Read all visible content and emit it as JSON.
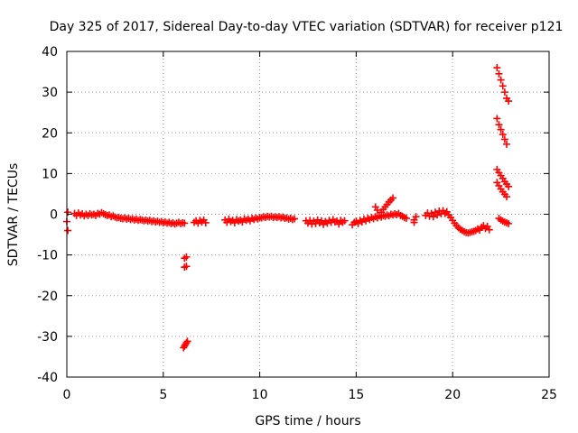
{
  "chart_data": {
    "type": "scatter",
    "title": "Day 325 of 2017, Sidereal Day-to-day VTEC variation (SDTVAR) for receiver p121",
    "xlabel": "GPS time / hours",
    "ylabel": "SDTVAR / TECUs",
    "xlim": [
      0,
      25
    ],
    "ylim": [
      -40,
      40
    ],
    "xticks": [
      0,
      5,
      10,
      15,
      20,
      25
    ],
    "yticks": [
      -40,
      -30,
      -20,
      -10,
      0,
      10,
      20,
      30,
      40
    ],
    "xtick_labels": [
      "0",
      "5",
      "10",
      "15",
      "20",
      "25"
    ],
    "ytick_labels": [
      "-40",
      "-30",
      "-20",
      "-10",
      "0",
      "10",
      "20",
      "30",
      "40"
    ],
    "grid": true,
    "marker": "plus",
    "series": [
      {
        "name": "SDTVAR",
        "color": "#ff0000",
        "points": [
          [
            0.0,
            -1.8
          ],
          [
            0.05,
            0.5
          ],
          [
            0.05,
            -4.0
          ],
          [
            0.4,
            0.2
          ],
          [
            0.5,
            -0.3
          ],
          [
            0.6,
            0.3
          ],
          [
            0.7,
            -0.2
          ],
          [
            0.8,
            0.1
          ],
          [
            0.9,
            -0.4
          ],
          [
            1.0,
            0.0
          ],
          [
            1.1,
            -0.3
          ],
          [
            1.2,
            0.1
          ],
          [
            1.3,
            -0.2
          ],
          [
            1.4,
            0.0
          ],
          [
            1.5,
            -0.3
          ],
          [
            1.6,
            0.2
          ],
          [
            1.7,
            0.0
          ],
          [
            1.8,
            0.4
          ],
          [
            1.9,
            0.1
          ],
          [
            2.0,
            -0.1
          ],
          [
            2.1,
            -0.3
          ],
          [
            2.2,
            -0.2
          ],
          [
            2.3,
            -0.6
          ],
          [
            2.4,
            -0.4
          ],
          [
            2.5,
            -0.7
          ],
          [
            2.6,
            -0.9
          ],
          [
            2.7,
            -0.8
          ],
          [
            2.8,
            -1.0
          ],
          [
            2.9,
            -1.1
          ],
          [
            3.0,
            -0.9
          ],
          [
            3.1,
            -1.2
          ],
          [
            3.2,
            -1.0
          ],
          [
            3.3,
            -1.3
          ],
          [
            3.4,
            -1.1
          ],
          [
            3.5,
            -1.4
          ],
          [
            3.6,
            -1.2
          ],
          [
            3.7,
            -1.5
          ],
          [
            3.8,
            -1.3
          ],
          [
            3.9,
            -1.4
          ],
          [
            4.0,
            -1.6
          ],
          [
            4.1,
            -1.4
          ],
          [
            4.2,
            -1.7
          ],
          [
            4.3,
            -1.5
          ],
          [
            4.4,
            -1.8
          ],
          [
            4.5,
            -1.6
          ],
          [
            4.6,
            -1.9
          ],
          [
            4.7,
            -1.7
          ],
          [
            4.8,
            -2.0
          ],
          [
            4.9,
            -1.8
          ],
          [
            5.0,
            -2.1
          ],
          [
            5.1,
            -1.9
          ],
          [
            5.2,
            -2.2
          ],
          [
            5.3,
            -2.0
          ],
          [
            5.4,
            -2.3
          ],
          [
            5.5,
            -2.1
          ],
          [
            5.6,
            -2.4
          ],
          [
            5.7,
            -2.2
          ],
          [
            5.8,
            -2.0
          ],
          [
            5.9,
            -2.3
          ],
          [
            6.0,
            -2.1
          ],
          [
            6.1,
            -2.2
          ],
          [
            6.1,
            -10.8
          ],
          [
            6.2,
            -10.5
          ],
          [
            6.1,
            -13.0
          ],
          [
            6.2,
            -12.8
          ],
          [
            6.05,
            -32.8
          ],
          [
            6.1,
            -32.4
          ],
          [
            6.15,
            -32.0
          ],
          [
            6.2,
            -31.6
          ],
          [
            6.25,
            -31.2
          ],
          [
            6.6,
            -2.0
          ],
          [
            6.7,
            -1.6
          ],
          [
            6.8,
            -2.2
          ],
          [
            6.9,
            -1.5
          ],
          [
            7.0,
            -1.9
          ],
          [
            7.1,
            -1.4
          ],
          [
            7.2,
            -2.1
          ],
          [
            8.2,
            -1.4
          ],
          [
            8.3,
            -2.0
          ],
          [
            8.4,
            -1.2
          ],
          [
            8.5,
            -1.8
          ],
          [
            8.6,
            -1.5
          ],
          [
            8.7,
            -2.1
          ],
          [
            8.8,
            -1.3
          ],
          [
            8.9,
            -1.7
          ],
          [
            9.0,
            -1.4
          ],
          [
            9.1,
            -1.9
          ],
          [
            9.2,
            -1.1
          ],
          [
            9.3,
            -1.5
          ],
          [
            9.4,
            -1.2
          ],
          [
            9.5,
            -1.6
          ],
          [
            9.6,
            -1.0
          ],
          [
            9.7,
            -1.3
          ],
          [
            9.8,
            -0.9
          ],
          [
            9.9,
            -1.2
          ],
          [
            10.0,
            -0.8
          ],
          [
            10.1,
            -0.9
          ],
          [
            10.2,
            -0.6
          ],
          [
            10.3,
            -0.8
          ],
          [
            10.4,
            -0.5
          ],
          [
            10.5,
            -0.7
          ],
          [
            10.6,
            -0.5
          ],
          [
            10.7,
            -0.8
          ],
          [
            10.8,
            -0.6
          ],
          [
            10.9,
            -0.8
          ],
          [
            11.0,
            -0.6
          ],
          [
            11.1,
            -0.9
          ],
          [
            11.2,
            -0.7
          ],
          [
            11.3,
            -1.0
          ],
          [
            11.4,
            -0.9
          ],
          [
            11.5,
            -1.2
          ],
          [
            11.6,
            -1.0
          ],
          [
            11.7,
            -1.3
          ],
          [
            11.8,
            -1.1
          ],
          [
            12.4,
            -1.6
          ],
          [
            12.5,
            -2.2
          ],
          [
            12.6,
            -1.5
          ],
          [
            12.7,
            -2.4
          ],
          [
            12.8,
            -1.7
          ],
          [
            12.9,
            -2.3
          ],
          [
            13.0,
            -1.4
          ],
          [
            13.1,
            -2.1
          ],
          [
            13.2,
            -1.6
          ],
          [
            13.3,
            -2.5
          ],
          [
            13.4,
            -1.8
          ],
          [
            13.5,
            -2.2
          ],
          [
            13.6,
            -1.5
          ],
          [
            13.7,
            -2.0
          ],
          [
            13.8,
            -1.3
          ],
          [
            13.9,
            -1.9
          ],
          [
            14.0,
            -1.7
          ],
          [
            14.1,
            -2.4
          ],
          [
            14.2,
            -1.5
          ],
          [
            14.3,
            -2.0
          ],
          [
            14.4,
            -1.6
          ],
          [
            14.8,
            -2.6
          ],
          [
            14.9,
            -2.0
          ],
          [
            15.0,
            -1.7
          ],
          [
            15.1,
            -2.3
          ],
          [
            15.2,
            -1.5
          ],
          [
            15.3,
            -1.9
          ],
          [
            15.4,
            -1.2
          ],
          [
            15.5,
            -1.6
          ],
          [
            15.6,
            -1.0
          ],
          [
            15.7,
            -1.3
          ],
          [
            15.8,
            -0.8
          ],
          [
            15.9,
            -1.1
          ],
          [
            16.0,
            -0.6
          ],
          [
            16.1,
            -0.9
          ],
          [
            16.2,
            -0.4
          ],
          [
            16.3,
            -0.7
          ],
          [
            16.4,
            -0.3
          ],
          [
            16.5,
            -0.5
          ],
          [
            16.6,
            -0.2
          ],
          [
            16.7,
            -0.4
          ],
          [
            16.8,
            0.0
          ],
          [
            16.9,
            -0.2
          ],
          [
            17.0,
            0.1
          ],
          [
            17.1,
            -0.1
          ],
          [
            17.2,
            0.2
          ],
          [
            17.3,
            -0.3
          ],
          [
            17.4,
            -0.5
          ],
          [
            17.5,
            -0.8
          ],
          [
            17.6,
            -1.0
          ],
          [
            16.0,
            1.8
          ],
          [
            16.1,
            1.0
          ],
          [
            16.3,
            0.5
          ],
          [
            16.4,
            1.2
          ],
          [
            16.5,
            1.8
          ],
          [
            16.6,
            2.4
          ],
          [
            16.7,
            3.0
          ],
          [
            16.8,
            3.5
          ],
          [
            16.9,
            4.0
          ],
          [
            18.0,
            -1.4
          ],
          [
            18.1,
            -0.6
          ],
          [
            18.0,
            -2.0
          ],
          [
            18.6,
            -0.3
          ],
          [
            18.7,
            0.3
          ],
          [
            18.8,
            -0.5
          ],
          [
            18.9,
            0.2
          ],
          [
            19.0,
            -0.6
          ],
          [
            19.1,
            0.5
          ],
          [
            19.2,
            -0.2
          ],
          [
            19.3,
            0.8
          ],
          [
            19.4,
            0.1
          ],
          [
            19.5,
            0.9
          ],
          [
            19.6,
            0.2
          ],
          [
            19.7,
            0.6
          ],
          [
            19.8,
            -0.2
          ],
          [
            19.9,
            -0.8
          ],
          [
            20.0,
            -1.5
          ],
          [
            20.1,
            -2.2
          ],
          [
            20.2,
            -2.8
          ],
          [
            20.3,
            -3.3
          ],
          [
            20.4,
            -3.7
          ],
          [
            20.5,
            -4.0
          ],
          [
            20.6,
            -4.3
          ],
          [
            20.7,
            -4.5
          ],
          [
            20.8,
            -4.6
          ],
          [
            20.9,
            -4.5
          ],
          [
            21.0,
            -4.3
          ],
          [
            21.1,
            -4.2
          ],
          [
            21.2,
            -4.0
          ],
          [
            21.3,
            -3.6
          ],
          [
            21.4,
            -3.9
          ],
          [
            21.5,
            -3.2
          ],
          [
            21.6,
            -2.8
          ],
          [
            21.7,
            -3.5
          ],
          [
            21.8,
            -3.0
          ],
          [
            21.9,
            -3.8
          ],
          [
            22.3,
            36.0
          ],
          [
            22.4,
            34.5
          ],
          [
            22.5,
            33.0
          ],
          [
            22.6,
            31.5
          ],
          [
            22.7,
            30.0
          ],
          [
            22.8,
            28.5
          ],
          [
            22.9,
            27.8
          ],
          [
            22.3,
            23.5
          ],
          [
            22.4,
            22.0
          ],
          [
            22.5,
            20.8
          ],
          [
            22.6,
            19.6
          ],
          [
            22.7,
            18.4
          ],
          [
            22.8,
            17.2
          ],
          [
            22.3,
            11.0
          ],
          [
            22.4,
            10.2
          ],
          [
            22.5,
            9.5
          ],
          [
            22.6,
            8.8
          ],
          [
            22.7,
            8.0
          ],
          [
            22.8,
            7.4
          ],
          [
            22.9,
            6.8
          ],
          [
            22.3,
            7.8
          ],
          [
            22.4,
            7.0
          ],
          [
            22.5,
            6.2
          ],
          [
            22.6,
            5.5
          ],
          [
            22.7,
            4.9
          ],
          [
            22.8,
            4.3
          ],
          [
            22.4,
            -1.0
          ],
          [
            22.5,
            -1.4
          ],
          [
            22.6,
            -1.7
          ],
          [
            22.7,
            -1.9
          ],
          [
            22.8,
            -2.1
          ],
          [
            22.9,
            -2.3
          ]
        ]
      }
    ]
  }
}
